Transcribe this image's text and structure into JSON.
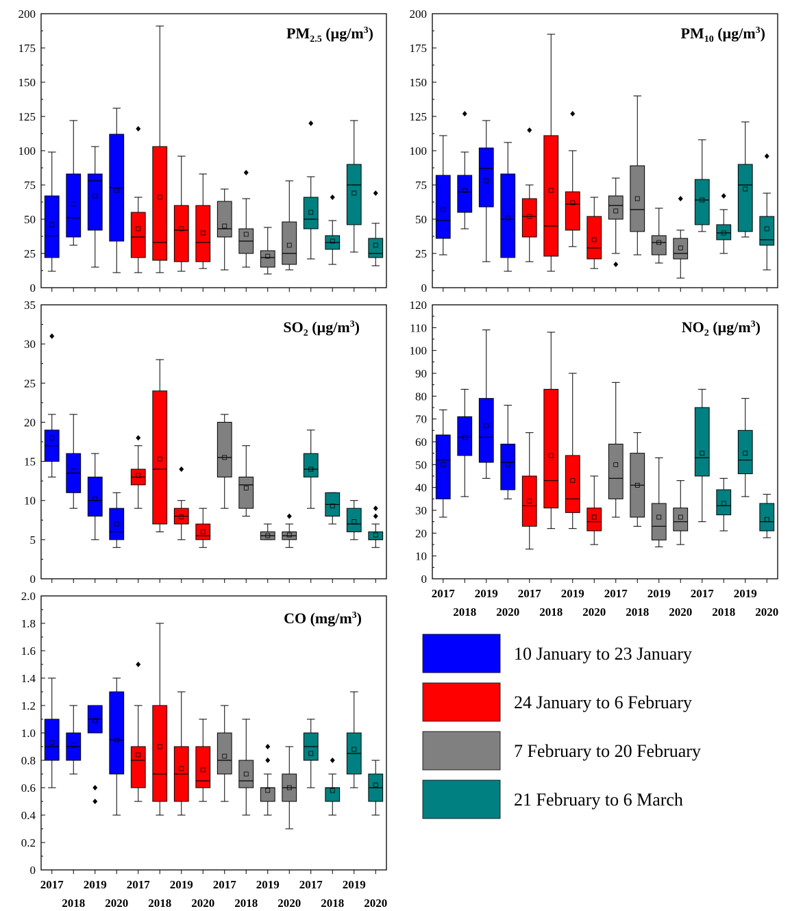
{
  "colors": {
    "blue": "#0000FF",
    "red": "#FF0000",
    "gray": "#808080",
    "teal": "#008080"
  },
  "legend": [
    {
      "label": "10 January to 23 January",
      "color": "#0000FF"
    },
    {
      "label": "24 January to 6 February",
      "color": "#FF0000"
    },
    {
      "label": "7 February to 20 February",
      "color": "#808080"
    },
    {
      "label": "21 February to 6 March",
      "color": "#008080"
    }
  ],
  "chart_data": [
    {
      "id": "pm25",
      "type": "box",
      "title": {
        "main": "PM",
        "sub": "2.5",
        "unit": " (µg/m",
        "sup": "3",
        "close": ")"
      },
      "ylim": [
        0,
        200
      ],
      "yticks": [
        "0",
        "25",
        "50",
        "75",
        "100",
        "125",
        "150",
        "175",
        "200"
      ],
      "period_colors": [
        "blue",
        "red",
        "gray",
        "teal"
      ],
      "years": [
        "2017",
        "2018",
        "2019",
        "2020"
      ],
      "boxes": [
        {
          "min": 12,
          "q1": 22,
          "median": 38,
          "q3": 67,
          "max": 99,
          "mean": 46,
          "outliers": []
        },
        {
          "min": 31,
          "q1": 37,
          "median": 51,
          "q3": 83,
          "max": 122,
          "mean": 61,
          "outliers": []
        },
        {
          "min": 15,
          "q1": 42,
          "median": 78,
          "q3": 83,
          "max": 103,
          "mean": 67,
          "outliers": []
        },
        {
          "min": 11,
          "q1": 34,
          "median": 73,
          "q3": 112,
          "max": 131,
          "mean": 71,
          "outliers": []
        },
        {
          "min": 11,
          "q1": 22,
          "median": 37,
          "q3": 55,
          "max": 66,
          "mean": 43,
          "outliers": [
            116
          ]
        },
        {
          "min": 11,
          "q1": 20,
          "median": 33,
          "q3": 103,
          "max": 191,
          "mean": 66,
          "outliers": []
        },
        {
          "min": 12,
          "q1": 19,
          "median": 42,
          "q3": 60,
          "max": 96,
          "mean": 43,
          "outliers": []
        },
        {
          "min": 14,
          "q1": 19,
          "median": 33,
          "q3": 60,
          "max": 83,
          "mean": 40,
          "outliers": []
        },
        {
          "min": 13,
          "q1": 37,
          "median": 43,
          "q3": 63,
          "max": 72,
          "mean": 45,
          "outliers": []
        },
        {
          "min": 15,
          "q1": 25,
          "median": 34,
          "q3": 43,
          "max": 65,
          "mean": 39,
          "outliers": [
            84
          ]
        },
        {
          "min": 10,
          "q1": 15,
          "median": 22,
          "q3": 27,
          "max": 44,
          "mean": 23,
          "outliers": []
        },
        {
          "min": 13,
          "q1": 17,
          "median": 25,
          "q3": 48,
          "max": 78,
          "mean": 31,
          "outliers": []
        },
        {
          "min": 21,
          "q1": 43,
          "median": 50,
          "q3": 66,
          "max": 81,
          "mean": 55,
          "outliers": [
            120
          ]
        },
        {
          "min": 17,
          "q1": 28,
          "median": 33,
          "q3": 38,
          "max": 49,
          "mean": 34,
          "outliers": [
            66
          ]
        },
        {
          "min": 26,
          "q1": 46,
          "median": 75,
          "q3": 90,
          "max": 122,
          "mean": 69,
          "outliers": []
        },
        {
          "min": 16,
          "q1": 22,
          "median": 25,
          "q3": 36,
          "max": 47,
          "mean": 31,
          "outliers": [
            69
          ]
        }
      ]
    },
    {
      "id": "pm10",
      "type": "box",
      "title": {
        "main": "PM",
        "sub": "10",
        "unit": " (µg/m",
        "sup": "3",
        "close": ")"
      },
      "ylim": [
        0,
        200
      ],
      "yticks": [
        "0",
        "25",
        "50",
        "75",
        "100",
        "125",
        "150",
        "175",
        "200"
      ],
      "period_colors": [
        "blue",
        "red",
        "gray",
        "teal"
      ],
      "years": [
        "2017",
        "2018",
        "2019",
        "2020"
      ],
      "boxes": [
        {
          "min": 24,
          "q1": 36,
          "median": 49,
          "q3": 82,
          "max": 111,
          "mean": 57,
          "outliers": []
        },
        {
          "min": 43,
          "q1": 55,
          "median": 70,
          "q3": 82,
          "max": 99,
          "mean": 71,
          "outliers": [
            127
          ]
        },
        {
          "min": 19,
          "q1": 59,
          "median": 87,
          "q3": 102,
          "max": 122,
          "mean": 78,
          "outliers": []
        },
        {
          "min": 12,
          "q1": 22,
          "median": 50,
          "q3": 83,
          "max": 106,
          "mean": 51,
          "outliers": []
        },
        {
          "min": 19,
          "q1": 37,
          "median": 52,
          "q3": 65,
          "max": 75,
          "mean": 52,
          "outliers": [
            115
          ]
        },
        {
          "min": 12,
          "q1": 23,
          "median": 45,
          "q3": 111,
          "max": 185,
          "mean": 71,
          "outliers": []
        },
        {
          "min": 30,
          "q1": 42,
          "median": 61,
          "q3": 70,
          "max": 100,
          "mean": 62,
          "outliers": [
            127
          ]
        },
        {
          "min": 14,
          "q1": 21,
          "median": 29,
          "q3": 52,
          "max": 66,
          "mean": 35,
          "outliers": []
        },
        {
          "min": 25,
          "q1": 50,
          "median": 60,
          "q3": 67,
          "max": 80,
          "mean": 56,
          "outliers": [
            17
          ]
        },
        {
          "min": 24,
          "q1": 41,
          "median": 57,
          "q3": 89,
          "max": 140,
          "mean": 65,
          "outliers": []
        },
        {
          "min": 18,
          "q1": 24,
          "median": 33,
          "q3": 38,
          "max": 58,
          "mean": 33,
          "outliers": []
        },
        {
          "min": 7,
          "q1": 21,
          "median": 25,
          "q3": 36,
          "max": 42,
          "mean": 29,
          "outliers": [
            65
          ]
        },
        {
          "min": 41,
          "q1": 46,
          "median": 64,
          "q3": 79,
          "max": 108,
          "mean": 64,
          "outliers": []
        },
        {
          "min": 25,
          "q1": 35,
          "median": 40,
          "q3": 46,
          "max": 57,
          "mean": 40,
          "outliers": [
            67
          ]
        },
        {
          "min": 37,
          "q1": 41,
          "median": 75,
          "q3": 90,
          "max": 121,
          "mean": 72,
          "outliers": []
        },
        {
          "min": 13,
          "q1": 31,
          "median": 35,
          "q3": 52,
          "max": 69,
          "mean": 43,
          "outliers": [
            96
          ]
        }
      ]
    },
    {
      "id": "so2",
      "type": "box",
      "title": {
        "main": "SO",
        "sub": "2",
        "unit": " (µg/m",
        "sup": "3",
        "close": ")"
      },
      "ylim": [
        0,
        35
      ],
      "yticks": [
        "0",
        "5",
        "10",
        "15",
        "20",
        "25",
        "30",
        "35"
      ],
      "period_colors": [
        "blue",
        "red",
        "gray",
        "teal"
      ],
      "years": [
        "2017",
        "2018",
        "2019",
        "2020"
      ],
      "boxes": [
        {
          "min": 13,
          "q1": 15,
          "median": 17,
          "q3": 19,
          "max": 21,
          "mean": 18,
          "outliers": [
            31
          ]
        },
        {
          "min": 9,
          "q1": 11,
          "median": 13.5,
          "q3": 16,
          "max": 21,
          "mean": 13.8,
          "outliers": []
        },
        {
          "min": 5,
          "q1": 8,
          "median": 10,
          "q3": 13,
          "max": 16,
          "mean": 10.2,
          "outliers": []
        },
        {
          "min": 4,
          "q1": 5,
          "median": 6,
          "q3": 9,
          "max": 11,
          "mean": 7,
          "outliers": []
        },
        {
          "min": 9,
          "q1": 12,
          "median": 13,
          "q3": 14,
          "max": 17,
          "mean": 13.2,
          "outliers": [
            18
          ]
        },
        {
          "min": 6,
          "q1": 7,
          "median": 14,
          "q3": 24,
          "max": 28,
          "mean": 15.3,
          "outliers": []
        },
        {
          "min": 5,
          "q1": 7,
          "median": 8,
          "q3": 9,
          "max": 10,
          "mean": 7.9,
          "outliers": [
            14
          ]
        },
        {
          "min": 4,
          "q1": 5,
          "median": 5.5,
          "q3": 7,
          "max": 9,
          "mean": 6,
          "outliers": []
        },
        {
          "min": 9,
          "q1": 13,
          "median": 15.5,
          "q3": 20,
          "max": 21,
          "mean": 15.5,
          "outliers": []
        },
        {
          "min": 8,
          "q1": 9,
          "median": 12,
          "q3": 13,
          "max": 17,
          "mean": 11.6,
          "outliers": []
        },
        {
          "min": 5,
          "q1": 5,
          "median": 5.5,
          "q3": 6,
          "max": 7,
          "mean": 5.5,
          "outliers": []
        },
        {
          "min": 4,
          "q1": 5,
          "median": 5.5,
          "q3": 6,
          "max": 7,
          "mean": 5.6,
          "outliers": [
            8
          ]
        },
        {
          "min": 9,
          "q1": 13,
          "median": 14,
          "q3": 16,
          "max": 19,
          "mean": 14,
          "outliers": []
        },
        {
          "min": 7,
          "q1": 8,
          "median": 9.5,
          "q3": 11,
          "max": 11,
          "mean": 9.3,
          "outliers": []
        },
        {
          "min": 5,
          "q1": 6,
          "median": 7,
          "q3": 9,
          "max": 10,
          "mean": 7.3,
          "outliers": []
        },
        {
          "min": 4,
          "q1": 5,
          "median": 5,
          "q3": 6,
          "max": 7,
          "mean": 5.6,
          "outliers": [
            8,
            9
          ]
        }
      ]
    },
    {
      "id": "no2",
      "type": "box",
      "title": {
        "main": "NO",
        "sub": "2",
        "unit": " (µg/m",
        "sup": "3",
        "close": ")"
      },
      "ylim": [
        0,
        120
      ],
      "yticks": [
        "0",
        "10",
        "20",
        "30",
        "40",
        "50",
        "60",
        "70",
        "80",
        "90",
        "100",
        "110",
        "120"
      ],
      "period_colors": [
        "blue",
        "red",
        "gray",
        "teal"
      ],
      "years": [
        "2017",
        "2018",
        "2019",
        "2020"
      ],
      "boxes": [
        {
          "min": 27,
          "q1": 35,
          "median": 52,
          "q3": 63,
          "max": 74,
          "mean": 50,
          "outliers": []
        },
        {
          "min": 36,
          "q1": 54,
          "median": 62,
          "q3": 71,
          "max": 83,
          "mean": 62,
          "outliers": []
        },
        {
          "min": 44,
          "q1": 51,
          "median": 62,
          "q3": 79,
          "max": 109,
          "mean": 67,
          "outliers": []
        },
        {
          "min": 35,
          "q1": 39,
          "median": 51,
          "q3": 59,
          "max": 76,
          "mean": 50,
          "outliers": []
        },
        {
          "min": 13,
          "q1": 23,
          "median": 32,
          "q3": 45,
          "max": 64,
          "mean": 34,
          "outliers": []
        },
        {
          "min": 22,
          "q1": 31,
          "median": 43,
          "q3": 83,
          "max": 108,
          "mean": 54,
          "outliers": []
        },
        {
          "min": 22,
          "q1": 29,
          "median": 35,
          "q3": 54,
          "max": 90,
          "mean": 43,
          "outliers": []
        },
        {
          "min": 15,
          "q1": 21,
          "median": 25,
          "q3": 31,
          "max": 45,
          "mean": 27,
          "outliers": []
        },
        {
          "min": 27,
          "q1": 35,
          "median": 44,
          "q3": 59,
          "max": 86,
          "mean": 50,
          "outliers": []
        },
        {
          "min": 23,
          "q1": 27,
          "median": 41,
          "q3": 55,
          "max": 64,
          "mean": 41,
          "outliers": []
        },
        {
          "min": 14,
          "q1": 17,
          "median": 23,
          "q3": 33,
          "max": 53,
          "mean": 27,
          "outliers": []
        },
        {
          "min": 15,
          "q1": 21,
          "median": 25,
          "q3": 31,
          "max": 43,
          "mean": 27,
          "outliers": []
        },
        {
          "min": 25,
          "q1": 45,
          "median": 53,
          "q3": 75,
          "max": 83,
          "mean": 55,
          "outliers": []
        },
        {
          "min": 21,
          "q1": 28,
          "median": 32,
          "q3": 39,
          "max": 44,
          "mean": 33,
          "outliers": []
        },
        {
          "min": 36,
          "q1": 46,
          "median": 52,
          "q3": 65,
          "max": 79,
          "mean": 55,
          "outliers": []
        },
        {
          "min": 18,
          "q1": 21,
          "median": 25,
          "q3": 33,
          "max": 37,
          "mean": 26,
          "outliers": []
        }
      ]
    },
    {
      "id": "co",
      "type": "box",
      "title": {
        "main": "CO",
        "sub": "",
        "unit": " (mg/m",
        "sup": "3",
        "close": ")"
      },
      "ylim": [
        0,
        2.0
      ],
      "yticks": [
        "0",
        "0.2",
        "0.4",
        "0.6",
        "0.8",
        "1.0",
        "1.2",
        "1.4",
        "1.6",
        "1.8",
        "2.0"
      ],
      "period_colors": [
        "blue",
        "red",
        "gray",
        "teal"
      ],
      "years": [
        "2017",
        "2018",
        "2019",
        "2020"
      ],
      "boxes": [
        {
          "min": 0.6,
          "q1": 0.8,
          "median": 0.9,
          "q3": 1.1,
          "max": 1.4,
          "mean": 0.93,
          "outliers": []
        },
        {
          "min": 0.7,
          "q1": 0.8,
          "median": 0.9,
          "q3": 1.0,
          "max": 1.2,
          "mean": 0.91,
          "outliers": []
        },
        {
          "min": 1.0,
          "q1": 1.0,
          "median": 1.1,
          "q3": 1.2,
          "max": 1.2,
          "mean": 1.09,
          "outliers": [
            0.6,
            0.5
          ]
        },
        {
          "min": 0.4,
          "q1": 0.7,
          "median": 0.95,
          "q3": 1.3,
          "max": 1.4,
          "mean": 0.95,
          "outliers": []
        },
        {
          "min": 0.5,
          "q1": 0.6,
          "median": 0.8,
          "q3": 0.9,
          "max": 1.2,
          "mean": 0.84,
          "outliers": [
            1.5
          ]
        },
        {
          "min": 0.4,
          "q1": 0.5,
          "median": 0.7,
          "q3": 1.2,
          "max": 1.8,
          "mean": 0.9,
          "outliers": []
        },
        {
          "min": 0.4,
          "q1": 0.5,
          "median": 0.7,
          "q3": 0.9,
          "max": 1.3,
          "mean": 0.74,
          "outliers": []
        },
        {
          "min": 0.5,
          "q1": 0.6,
          "median": 0.65,
          "q3": 0.9,
          "max": 1.1,
          "mean": 0.73,
          "outliers": []
        },
        {
          "min": 0.5,
          "q1": 0.7,
          "median": 0.8,
          "q3": 1.0,
          "max": 1.2,
          "mean": 0.83,
          "outliers": []
        },
        {
          "min": 0.4,
          "q1": 0.6,
          "median": 0.65,
          "q3": 0.8,
          "max": 1.1,
          "mean": 0.7,
          "outliers": []
        },
        {
          "min": 0.4,
          "q1": 0.5,
          "median": 0.6,
          "q3": 0.6,
          "max": 0.7,
          "mean": 0.58,
          "outliers": [
            0.8,
            0.9
          ]
        },
        {
          "min": 0.3,
          "q1": 0.5,
          "median": 0.6,
          "q3": 0.7,
          "max": 0.9,
          "mean": 0.6,
          "outliers": []
        },
        {
          "min": 0.6,
          "q1": 0.8,
          "median": 0.9,
          "q3": 1.0,
          "max": 1.1,
          "mean": 0.85,
          "outliers": []
        },
        {
          "min": 0.4,
          "q1": 0.5,
          "median": 0.6,
          "q3": 0.6,
          "max": 0.7,
          "mean": 0.58,
          "outliers": [
            0.8
          ]
        },
        {
          "min": 0.6,
          "q1": 0.7,
          "median": 0.85,
          "q3": 1.0,
          "max": 1.3,
          "mean": 0.88,
          "outliers": []
        },
        {
          "min": 0.4,
          "q1": 0.5,
          "median": 0.6,
          "q3": 0.7,
          "max": 0.8,
          "mean": 0.62,
          "outliers": []
        }
      ]
    }
  ]
}
